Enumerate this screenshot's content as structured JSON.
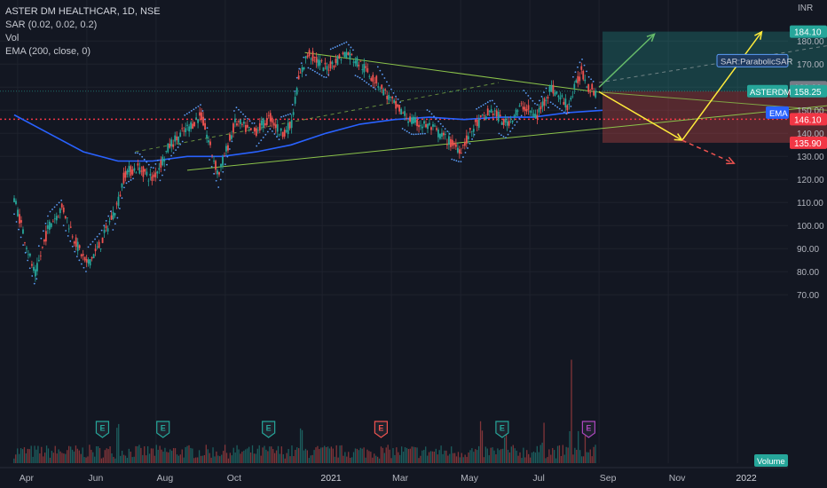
{
  "legend": {
    "title": "ASTER DM HEALTHCAR, 1D, NSE",
    "sar": "SAR (0.02, 0.02, 0.2)",
    "vol": "Vol",
    "ema": "EMA (200, close, 0)"
  },
  "currency": "INR",
  "colors": {
    "background": "#131722",
    "grid": "#1e222d",
    "up": "#26a69a",
    "down": "#ef5350",
    "ema": "#2962ff",
    "trend": "#8bc34a",
    "sar": "#5b9cf6",
    "projection": "#ffeb3b",
    "target_arrow": "#66bb6a",
    "stop_arrow": "#ef5350",
    "support_line": "#f23645"
  },
  "chart_data": {
    "type": "candlestick",
    "symbol": "ASTERDM",
    "x_ticks": [
      "Apr",
      "Jun",
      "Aug",
      "Oct",
      "2021",
      "Mar",
      "May",
      "Jul",
      "Sep",
      "Nov",
      "2022"
    ],
    "y_ticks": [
      70,
      80,
      90,
      100,
      110,
      120,
      130,
      140,
      150,
      160,
      170,
      180
    ],
    "ylim": [
      68,
      192
    ],
    "price_labels": [
      {
        "text": "184.10",
        "value": 184.1,
        "color": "#26a69a"
      },
      {
        "text": "160.00",
        "value": 160.0,
        "color": "#787b86"
      },
      {
        "text": "158.25",
        "value": 158.25,
        "color": "#26a69a",
        "tag": "ASTERDM"
      },
      {
        "text": "146.10",
        "value": 146.1,
        "color": "#f23645"
      },
      {
        "text": "135.90",
        "value": 135.9,
        "color": "#f23645"
      }
    ],
    "tags": {
      "sar": "SAR:ParabolicSAR",
      "ema": "EMA",
      "volume": "Volume"
    },
    "earnings_marker": "E",
    "earnings_months": [
      "May",
      "Aug",
      "Nov",
      "Feb",
      "Jun",
      "Sep"
    ],
    "price_path": [
      {
        "m": 0,
        "p": 112
      },
      {
        "m": 0.3,
        "p": 95
      },
      {
        "m": 0.6,
        "p": 78
      },
      {
        "m": 1.0,
        "p": 100
      },
      {
        "m": 1.4,
        "p": 108
      },
      {
        "m": 1.8,
        "p": 92
      },
      {
        "m": 2.1,
        "p": 83
      },
      {
        "m": 2.5,
        "p": 92
      },
      {
        "m": 2.8,
        "p": 103
      },
      {
        "m": 3.0,
        "p": 110
      },
      {
        "m": 3.2,
        "p": 123
      },
      {
        "m": 3.6,
        "p": 125
      },
      {
        "m": 4.0,
        "p": 120
      },
      {
        "m": 4.5,
        "p": 135
      },
      {
        "m": 5.0,
        "p": 142
      },
      {
        "m": 5.4,
        "p": 148
      },
      {
        "m": 5.9,
        "p": 122
      },
      {
        "m": 6.4,
        "p": 145
      },
      {
        "m": 6.9,
        "p": 140
      },
      {
        "m": 7.4,
        "p": 147
      },
      {
        "m": 7.7,
        "p": 140
      },
      {
        "m": 8.0,
        "p": 143
      },
      {
        "m": 8.2,
        "p": 162
      },
      {
        "m": 8.5,
        "p": 175
      },
      {
        "m": 9.0,
        "p": 168
      },
      {
        "m": 9.6,
        "p": 175
      },
      {
        "m": 10.0,
        "p": 170
      },
      {
        "m": 10.5,
        "p": 162
      },
      {
        "m": 11.0,
        "p": 152
      },
      {
        "m": 11.5,
        "p": 145
      },
      {
        "m": 12.0,
        "p": 143
      },
      {
        "m": 12.6,
        "p": 136
      },
      {
        "m": 12.9,
        "p": 133
      },
      {
        "m": 13.3,
        "p": 143
      },
      {
        "m": 13.8,
        "p": 150
      },
      {
        "m": 14.2,
        "p": 144
      },
      {
        "m": 14.7,
        "p": 152
      },
      {
        "m": 15.1,
        "p": 147
      },
      {
        "m": 15.5,
        "p": 160
      },
      {
        "m": 16.0,
        "p": 152
      },
      {
        "m": 16.4,
        "p": 167
      },
      {
        "m": 16.6,
        "p": 160
      },
      {
        "m": 16.8,
        "p": 158
      }
    ],
    "ema_path": [
      {
        "m": 0,
        "p": 148
      },
      {
        "m": 1.0,
        "p": 140
      },
      {
        "m": 2.0,
        "p": 132
      },
      {
        "m": 3.0,
        "p": 128
      },
      {
        "m": 4.0,
        "p": 128
      },
      {
        "m": 5.0,
        "p": 130
      },
      {
        "m": 6.0,
        "p": 130
      },
      {
        "m": 7.0,
        "p": 132
      },
      {
        "m": 8.0,
        "p": 135
      },
      {
        "m": 9.0,
        "p": 140
      },
      {
        "m": 10.0,
        "p": 144
      },
      {
        "m": 11.0,
        "p": 146
      },
      {
        "m": 12.0,
        "p": 147
      },
      {
        "m": 13.0,
        "p": 146
      },
      {
        "m": 14.0,
        "p": 147
      },
      {
        "m": 15.0,
        "p": 147
      },
      {
        "m": 16.0,
        "p": 149
      },
      {
        "m": 17.0,
        "p": 150
      }
    ],
    "volume_spikes": [
      {
        "m": 3.0,
        "v": 0.55
      },
      {
        "m": 8.3,
        "v": 0.5
      },
      {
        "m": 13.5,
        "v": 0.55
      },
      {
        "m": 14.2,
        "v": 0.4
      },
      {
        "m": 15.3,
        "v": 0.45
      },
      {
        "m": 16.1,
        "v": 1.0
      },
      {
        "m": 16.3,
        "v": 0.3
      },
      {
        "m": 16.5,
        "v": 0.25
      }
    ],
    "trendlines": [
      {
        "m1": 8.4,
        "p1": 175,
        "m2": 16.8,
        "p2": 158,
        "m3": 23.5,
        "p3": 150
      },
      {
        "m1": 5.0,
        "p1": 124,
        "m2": 23.5,
        "p2": 152
      }
    ],
    "dashed_line": {
      "m1": 3.5,
      "p1": 132,
      "m2": 17.6,
      "p2": 172
    },
    "long_position": {
      "m1": 17.0,
      "m2": 23.5,
      "entry": 158.25,
      "target": 184.1,
      "stop": 135.9
    },
    "projections": {
      "target_path": [
        {
          "m": 16.9,
          "p": 160
        },
        {
          "m": 18.5,
          "p": 183
        }
      ],
      "yellow_path": [
        {
          "m": 16.9,
          "p": 158
        },
        {
          "m": 19.3,
          "p": 137
        },
        {
          "m": 21.6,
          "p": 184
        }
      ],
      "stop_path": [
        {
          "m": 19.3,
          "p": 137
        },
        {
          "m": 20.8,
          "p": 127
        }
      ]
    }
  }
}
